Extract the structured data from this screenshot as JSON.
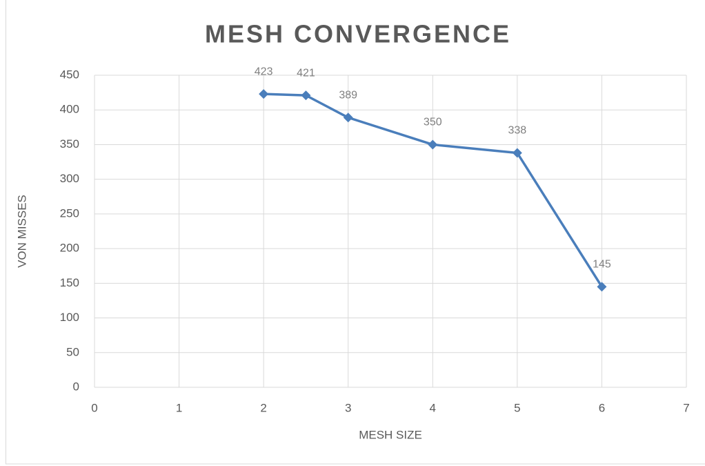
{
  "chart_data": {
    "type": "line",
    "title": "MESH CONVERGENCE",
    "x_label": "MESH SIZE",
    "y_label": "VON MISSES",
    "x": [
      2,
      2.5,
      3,
      4,
      5,
      6
    ],
    "values": [
      423,
      421,
      389,
      350,
      338,
      145
    ],
    "color": "#4a7ebb",
    "marker": "diamond",
    "data_labels": true,
    "xlim": [
      0,
      7
    ],
    "xticks": [
      0,
      1,
      2,
      3,
      4,
      5,
      6,
      7
    ],
    "ylim": [
      0,
      450
    ],
    "yticks": [
      0,
      50,
      100,
      150,
      200,
      250,
      300,
      350,
      400,
      450
    ],
    "grid": true
  }
}
